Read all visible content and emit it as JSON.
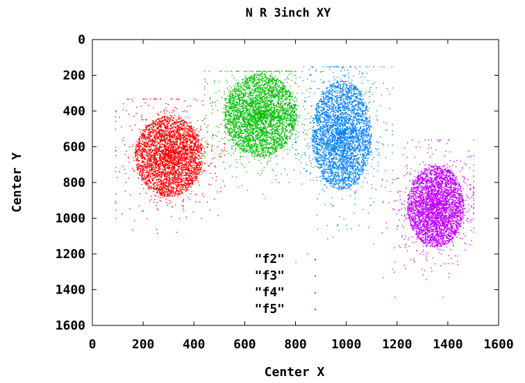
{
  "chart_data": {
    "type": "scatter",
    "title": "N R 3inch XY",
    "xlabel": "Center X",
    "ylabel": "Center Y",
    "xlim": [
      0,
      1600
    ],
    "ylim": [
      0,
      1600
    ],
    "y_inverted": true,
    "x_ticks": [
      "0",
      "200",
      "400",
      "600",
      "800",
      "1000",
      "1200",
      "1400",
      "1600"
    ],
    "y_ticks": [
      "0",
      "200",
      "400",
      "600",
      "800",
      "1000",
      "1200",
      "1400",
      "1600"
    ],
    "grid": false,
    "legend_position": "inside-bottom-center",
    "series": [
      {
        "name": "\"f2\"",
        "color": "#ff0000",
        "center": [
          300,
          650
        ],
        "x_range": [
          90,
          520
        ],
        "y_range": [
          330,
          1200
        ]
      },
      {
        "name": "\"f3\"",
        "color": "#00c000",
        "center": [
          660,
          420
        ],
        "x_range": [
          440,
          900
        ],
        "y_range": [
          175,
          1070
        ]
      },
      {
        "name": "\"f4\"",
        "color": "#0080ff",
        "center": [
          980,
          530
        ],
        "x_range": [
          800,
          1180
        ],
        "y_range": [
          150,
          1330
        ]
      },
      {
        "name": "\"f5\"",
        "color": "#c000ff",
        "center": [
          1350,
          930
        ],
        "x_range": [
          1140,
          1500
        ],
        "y_range": [
          560,
          1440
        ]
      }
    ]
  }
}
